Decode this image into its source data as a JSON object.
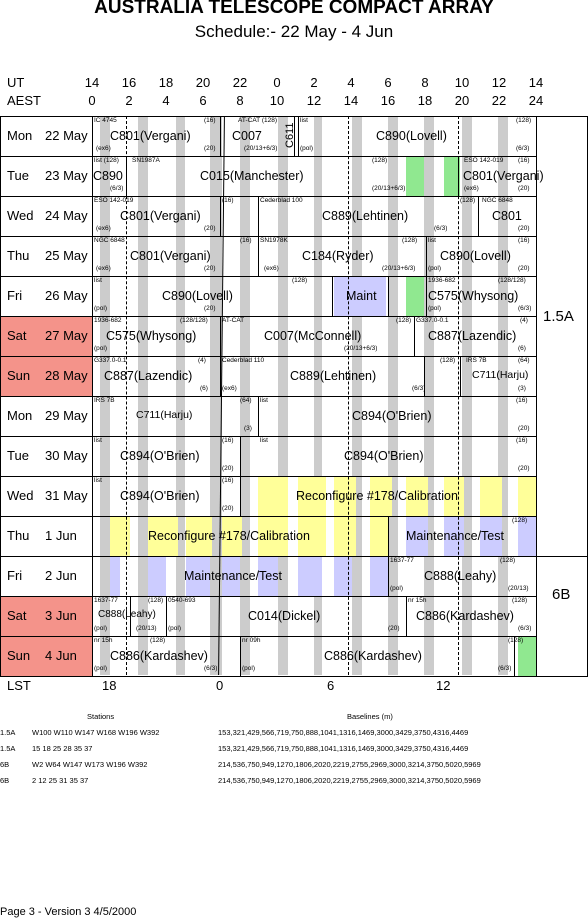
{
  "title": "AUSTRALIA TELESCOPE COMPACT ARRAY",
  "subtitle": "Schedule:- 22 May - 4  Jun",
  "header": {
    "ut_label": "UT",
    "aest_label": "AEST",
    "ut_hours": [
      "14",
      "16",
      "18",
      "20",
      "22",
      "0",
      "2",
      "4",
      "6",
      "8",
      "10",
      "12",
      "14"
    ],
    "aest_hours": [
      "0",
      "2",
      "4",
      "6",
      "8",
      "10",
      "12",
      "14",
      "16",
      "18",
      "20",
      "22",
      "24"
    ]
  },
  "days": [
    {
      "name": "Mon",
      "date": "22 May",
      "weekend": false
    },
    {
      "name": "Tue",
      "date": "23 May",
      "weekend": false
    },
    {
      "name": "Wed",
      "date": "24 May",
      "weekend": false
    },
    {
      "name": "Thu",
      "date": "25 May",
      "weekend": false
    },
    {
      "name": "Fri",
      "date": "26 May",
      "weekend": false
    },
    {
      "name": "Sat",
      "date": "27 May",
      "weekend": true
    },
    {
      "name": "Sun",
      "date": "28 May",
      "weekend": true
    },
    {
      "name": "Mon",
      "date": "29 May",
      "weekend": false
    },
    {
      "name": "Tue",
      "date": "30 May",
      "weekend": false
    },
    {
      "name": "Wed",
      "date": "31 May",
      "weekend": false
    },
    {
      "name": "Thu",
      "date": "1  Jun",
      "weekend": false
    },
    {
      "name": "Fri",
      "date": "2  Jun",
      "weekend": false
    },
    {
      "name": "Sat",
      "date": "3  Jun",
      "weekend": true
    },
    {
      "name": "Sun",
      "date": "4  Jun",
      "weekend": true
    }
  ],
  "configs": [
    "1.5A",
    "6B"
  ],
  "lst": {
    "label": "LST",
    "ticks": [
      "18",
      "0",
      "6",
      "12"
    ]
  },
  "projects": [
    "C801(Vergani)",
    "C007",
    "C611",
    "C890(Lovell)",
    "C890",
    "C015(Manchester)",
    "C801(Vergani)",
    "C801(Vergani)",
    "C889(Lehtinen)",
    "C801",
    "C801(Vergani)",
    "C184(Ryder)",
    "C890(Lovell)",
    "C890(Lovell)",
    "Maint",
    "C575(Whysong)",
    "C575(Whysong)",
    "C007(McConnell)",
    "C887(Lazendic)",
    "C887(Lazendic)",
    "C889(Lehtinen)",
    "C711(Harju)",
    "C711(Harju)",
    "C894(O'Brien)",
    "C894(O'Brien)",
    "C894(O'Brien)",
    "C894(O'Brien)",
    "Reconfigure #178/Calibration",
    "Reconfigure #178/Calibration",
    "Maintenance/Test",
    "Maintenance/Test",
    "C888(Leahy)",
    "C888(Leahy)",
    "C014(Dickel)",
    "C886(Kardashev)",
    "C886(Kardashev)",
    "C886(Kardashev)"
  ],
  "small_notes": [
    "IC 4745",
    "(16)",
    "AT-CAT (128)",
    "list",
    "(128)",
    "(ex6)",
    "(20)",
    "(20/13+6/3)",
    "(pol)",
    "(6/3)",
    "list (128)",
    "SN1987A",
    "(128)",
    "ESO 142-019",
    "(16)",
    "(6/3)",
    "(20/13+6/3)",
    "(ex6)",
    "(20)",
    "ESO 142-019",
    "(16)",
    "Cederblad 100",
    "(128)",
    "NGC 6848",
    "(ex6)",
    "(20)",
    "(6/3)",
    "(20)",
    "NGC 6848",
    "(16)",
    "SN1978K",
    "(128)",
    "list",
    "(16)",
    "(ex6)",
    "(20)",
    "(ex6)",
    "(20/13+6/3)",
    "(pol)",
    "(20)",
    "list",
    "(128)",
    "1936-682",
    "(128/128)",
    "(pol)",
    "(20)",
    "(pol)",
    "(6/3)",
    "1936-682",
    "(128/128)",
    "AT-CAT",
    "(128)",
    "G337.0-0.1",
    "(4)",
    "(pol)",
    "(20/13+6/3)",
    "(6)",
    "G337.0-0.1",
    "(4)",
    "Cederblad 110",
    "(128)",
    "IRS 7B",
    "(64)",
    "(6)",
    "(ex6)",
    "(6/3)",
    "(3)",
    "IRS 7B",
    "(64)",
    "list",
    "(16)",
    "(3)",
    "(20)",
    "list",
    "(16)",
    "list",
    "(16)",
    "(20)",
    "(20)",
    "list",
    "(16)",
    "(20)",
    "(128)",
    "1637-77",
    "(128)",
    "(pol)",
    "(20/13)",
    "1637-77",
    "(128)",
    "0540-693",
    "nr 15h",
    "(128)",
    "(pol)",
    "(20/13)",
    "(pol)",
    "(20)",
    "(6/3)",
    "nr 15h",
    "(128)",
    "nr 09h",
    "(128)",
    "(pol)",
    "(6/3)",
    "(pol)",
    "(6/3)"
  ],
  "stations": {
    "header_stations": "Stations",
    "header_baselines": "Baselines (m)",
    "rows": [
      {
        "cfg": "1.5A",
        "stations": "W100 W110 W147 W168 W196 W392",
        "baselines": "153,321,429,566,719,750,888,1041,1316,1469,3000,3429,3750,4316,4469"
      },
      {
        "cfg": "1.5A",
        "stations": "15 18 25 28 35 37",
        "baselines": "153,321,429,566,719,750,888,1041,1316,1469,3000,3429,3750,4316,4469"
      },
      {
        "cfg": "6B",
        "stations": "W2 W64 W147 W173 W196 W392",
        "baselines": "214,536,750,949,1270,1806,2020,2219,2755,2969,3000,3214,3750,5020,5969"
      },
      {
        "cfg": "6B",
        "stations": "2 12 25 31 35 37",
        "baselines": "214,536,750,949,1270,1806,2020,2219,2755,2969,3000,3214,3750,5020,5969"
      }
    ]
  },
  "footer": "Page 3 - Version 3  4/5/2000",
  "colors": {
    "weekend": "#f4938a",
    "gray_band": "#cccccc",
    "green": "#90e890",
    "yellow": "#ffff99",
    "blue": "#ccccff"
  }
}
